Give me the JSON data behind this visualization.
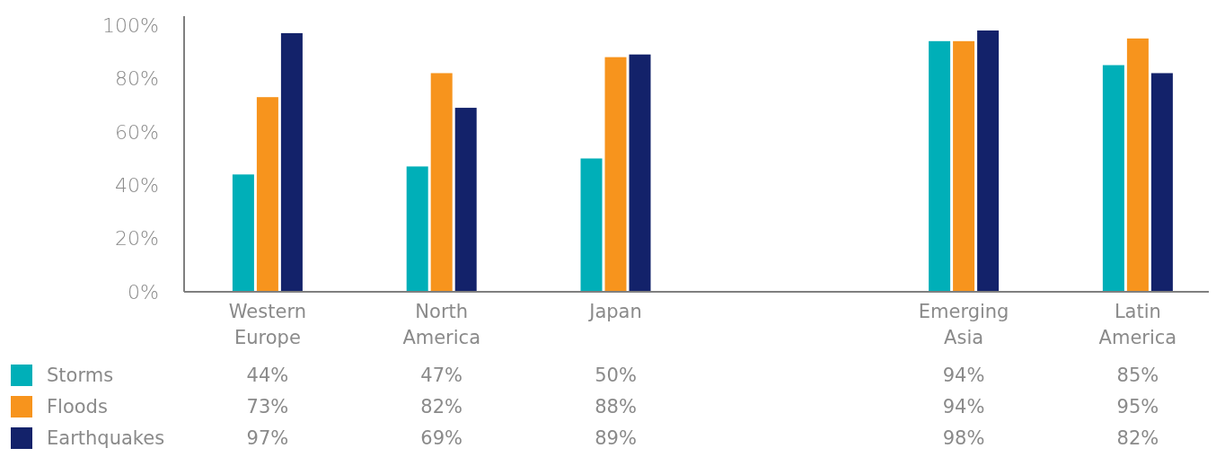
{
  "chart_data": {
    "type": "bar",
    "categories": [
      "Western Europe",
      "North America",
      "Japan",
      null,
      "Emerging Asia",
      "Latin America"
    ],
    "series": [
      {
        "name": "Storms",
        "color": "#00afb8",
        "values": [
          44,
          47,
          50,
          null,
          94,
          85
        ],
        "value_labels": [
          "44%",
          "47%",
          "50%",
          null,
          "94%",
          "85%"
        ]
      },
      {
        "name": "Floods",
        "color": "#f7941d",
        "values": [
          73,
          82,
          88,
          null,
          94,
          95
        ],
        "value_labels": [
          "73%",
          "82%",
          "88%",
          null,
          "94%",
          "95%"
        ]
      },
      {
        "name": "Earthquakes",
        "color": "#13226a",
        "values": [
          97,
          69,
          89,
          null,
          98,
          82
        ],
        "value_labels": [
          "97%",
          "69%",
          "89%",
          null,
          "98%",
          "82%"
        ]
      }
    ],
    "ylim": [
      0,
      100
    ],
    "yticks": [
      {
        "value": 0,
        "label": "0%"
      },
      {
        "value": 20,
        "label": "20%"
      },
      {
        "value": 40,
        "label": "40%"
      },
      {
        "value": 60,
        "label": "60%"
      },
      {
        "value": 80,
        "label": "80%"
      },
      {
        "value": 100,
        "label": "100%"
      }
    ],
    "legend": "bottom left",
    "grid": false
  }
}
